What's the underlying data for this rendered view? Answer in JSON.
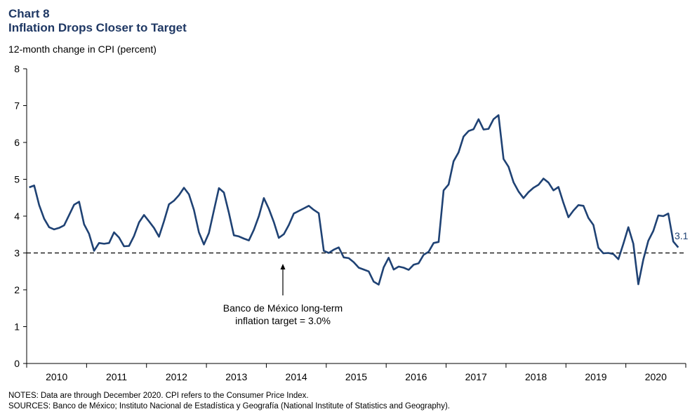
{
  "header": {
    "chart_number": "Chart 8",
    "title": "Inflation Drops Closer to Target",
    "unit_label": "12-month change in CPI (percent)"
  },
  "annotation": {
    "line1": "Banco de México long-term",
    "line2": "inflation target = 3.0%",
    "end_label": "3.1"
  },
  "footer": {
    "notes": "NOTES: Data are through December 2020. CPI refers to the Consumer Price Index.",
    "sources": "SOURCES: Banco de México; Instituto Nacional de Estadística y Geografía (National Institute of Statistics and Geography)."
  },
  "colors": {
    "series": "#1f4274",
    "title": "#1f3864",
    "axis": "#000000",
    "target_line": "#000000"
  },
  "chart_data": {
    "type": "line",
    "title": "Inflation Drops Closer to Target",
    "ylabel": "12-month change in CPI (percent)",
    "xlabel": "",
    "ylim": [
      0,
      8
    ],
    "yticks": [
      0,
      1,
      2,
      3,
      4,
      5,
      6,
      7,
      8
    ],
    "xlim": [
      "2010-01",
      "2020-12"
    ],
    "year_labels": [
      "2010",
      "2011",
      "2012",
      "2013",
      "2014",
      "2015",
      "2016",
      "2017",
      "2018",
      "2019",
      "2020"
    ],
    "grid": false,
    "target": {
      "value": 3.0,
      "style": "dashed"
    },
    "series": [
      {
        "start": "2010-01",
        "frequency": "monthly",
        "values": [
          4.78,
          4.83,
          4.3,
          3.93,
          3.7,
          3.64,
          3.68,
          3.75,
          4.03,
          4.31,
          4.39,
          3.78,
          3.52,
          3.06,
          3.27,
          3.25,
          3.27,
          3.56,
          3.42,
          3.18,
          3.19,
          3.46,
          3.83,
          4.03,
          3.86,
          3.68,
          3.44,
          3.86,
          4.32,
          4.42,
          4.57,
          4.77,
          4.59,
          4.17,
          3.56,
          3.23,
          3.54,
          4.16,
          4.76,
          4.64,
          4.09,
          3.48,
          3.45,
          3.39,
          3.34,
          3.63,
          4.0,
          4.49,
          4.2,
          3.84,
          3.41,
          3.51,
          3.76,
          4.07,
          4.14,
          4.21,
          4.28,
          4.17,
          4.08,
          3.06,
          3.0,
          3.09,
          3.15,
          2.88,
          2.86,
          2.75,
          2.6,
          2.55,
          2.5,
          2.22,
          2.14,
          2.61,
          2.87,
          2.55,
          2.63,
          2.6,
          2.54,
          2.68,
          2.72,
          2.95,
          3.03,
          3.27,
          3.3,
          4.7,
          4.86,
          5.49,
          5.73,
          6.16,
          6.31,
          6.36,
          6.63,
          6.35,
          6.37,
          6.63,
          6.74,
          5.55,
          5.34,
          4.92,
          4.67,
          4.49,
          4.65,
          4.77,
          4.85,
          5.02,
          4.91,
          4.7,
          4.79,
          4.36,
          3.97,
          4.15,
          4.3,
          4.28,
          3.95,
          3.76,
          3.14,
          2.99,
          3.0,
          2.97,
          2.83,
          3.25,
          3.7,
          3.25,
          2.15,
          2.82,
          3.33,
          3.6,
          4.02,
          4.0,
          4.07,
          3.31,
          3.15
        ]
      }
    ]
  }
}
